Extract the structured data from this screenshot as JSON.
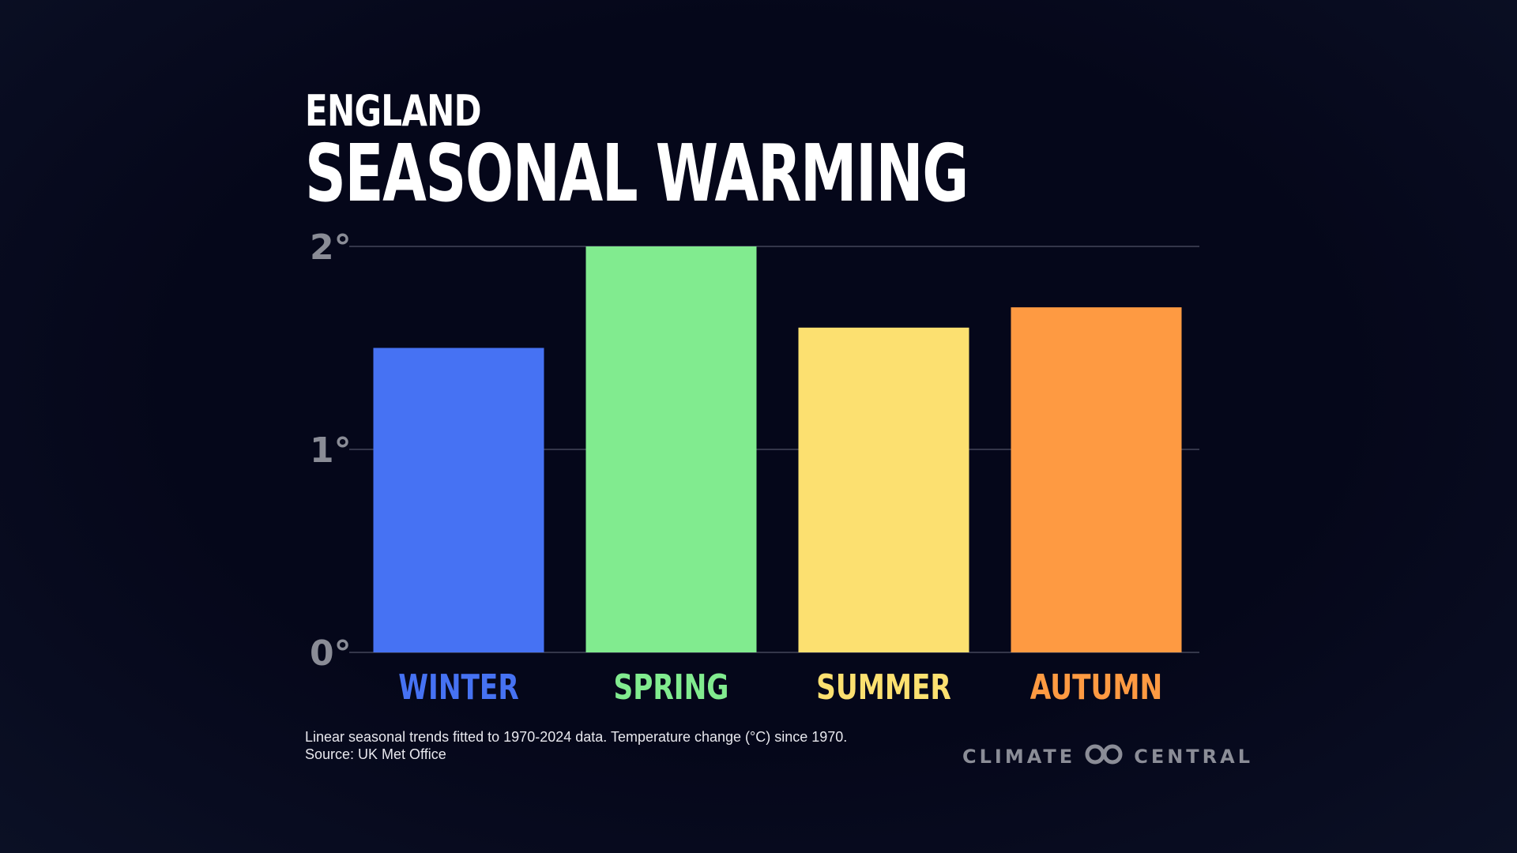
{
  "colors": {
    "background": "#05071a",
    "winter": "#4672f3",
    "spring": "#81eb8f",
    "summer": "#fce070",
    "autumn": "#fe9a42",
    "gridline": "#44475a",
    "tick": "#8a8c96"
  },
  "header": {
    "subtitle": "ENGLAND",
    "title": "SEASONAL WARMING"
  },
  "footnote": {
    "line1": "Linear seasonal trends fitted to 1970-2024 data. Temperature change (°C) since 1970.",
    "line2": "Source: UK Met Office"
  },
  "brand": {
    "left": "CLIMATE",
    "right": "CENTRAL",
    "logo_icon": "climate-central-logo-icon"
  },
  "chart_data": {
    "type": "bar",
    "title": "SEASONAL WARMING",
    "subtitle": "ENGLAND",
    "categories": [
      "WINTER",
      "SPRING",
      "SUMMER",
      "AUTUMN"
    ],
    "values": [
      1.5,
      2.0,
      1.6,
      1.7
    ],
    "bar_colors": [
      "#4672f3",
      "#81eb8f",
      "#fce070",
      "#fe9a42"
    ],
    "ylim": [
      0,
      2
    ],
    "yticks": [
      0,
      1,
      2
    ],
    "ytick_labels": [
      "0°",
      "1°",
      "2°"
    ],
    "xlabel": "",
    "ylabel": "",
    "grid": true,
    "legend": "none"
  }
}
